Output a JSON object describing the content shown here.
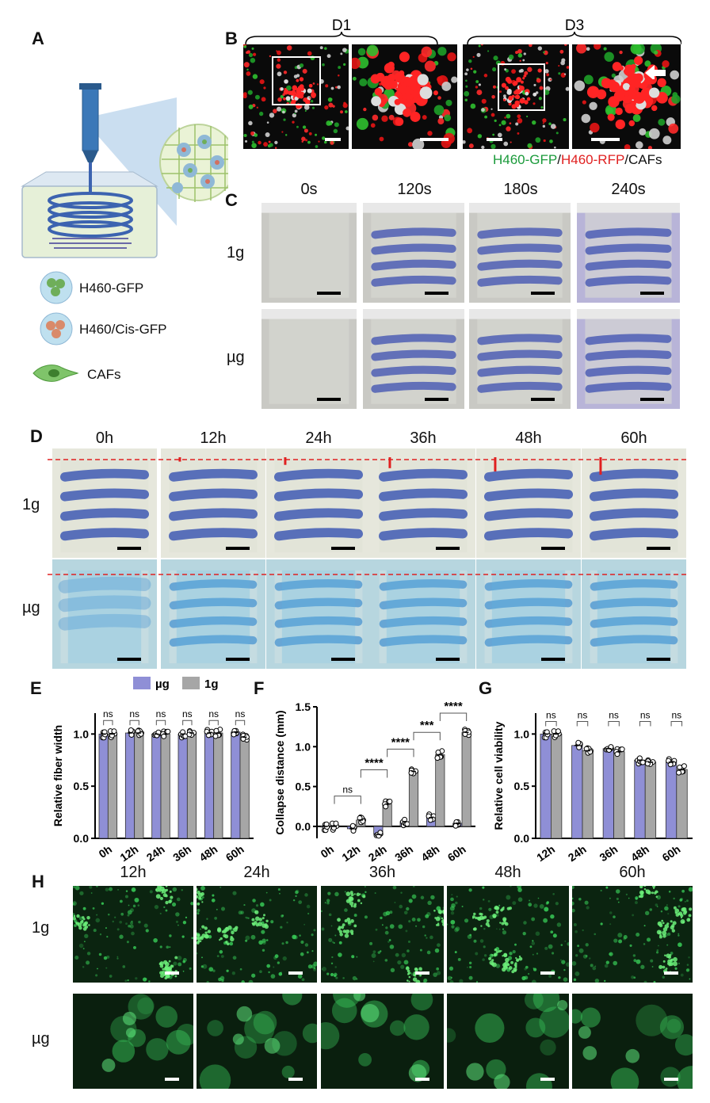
{
  "panels": {
    "A": {
      "label": "A",
      "legend": [
        {
          "text": "H460-GFP",
          "icon": "h460-gfp-sphere-icon"
        },
        {
          "text": "H460/Cis-GFP",
          "icon": "h460-cis-gfp-sphere-icon"
        },
        {
          "text": "CAFs",
          "icon": "caf-cell-icon"
        }
      ]
    },
    "B": {
      "label": "B",
      "groups": [
        "D1",
        "D3"
      ],
      "caption_green": "H460-GFP",
      "caption_sep1": "/",
      "caption_red": "H460-RFP",
      "caption_sep2": "/",
      "caption_gray": "CAFs"
    },
    "C": {
      "label": "C",
      "times": [
        "0s",
        "120s",
        "180s",
        "240s"
      ],
      "rows": [
        "1g",
        "µg"
      ]
    },
    "D": {
      "label": "D",
      "times": [
        "0h",
        "12h",
        "24h",
        "36h",
        "48h",
        "60h"
      ],
      "rows": [
        "1g",
        "µg"
      ]
    },
    "E": {
      "label": "E"
    },
    "F": {
      "label": "F"
    },
    "G": {
      "label": "G"
    },
    "H": {
      "label": "H",
      "times": [
        "12h",
        "24h",
        "36h",
        "48h",
        "60h"
      ],
      "rows": [
        "1g",
        "µg"
      ]
    }
  },
  "colors": {
    "ug": "#8f8fd6",
    "one_g": "#a6a6a6",
    "green_caption": "#1a9a3a",
    "red_caption": "#e02020"
  },
  "chart_data": [
    {
      "id": "E",
      "type": "bar",
      "ylabel": "Relative fiber width",
      "categories": [
        "0h",
        "12h",
        "24h",
        "36h",
        "48h",
        "60h"
      ],
      "legend": [
        "µg",
        "1g"
      ],
      "legend_position": "top",
      "series": [
        {
          "name": "µg",
          "values": [
            1.0,
            1.01,
            1.0,
            1.0,
            1.01,
            1.02
          ]
        },
        {
          "name": "1g",
          "values": [
            1.0,
            1.01,
            1.0,
            1.01,
            1.01,
            0.97
          ]
        }
      ],
      "ylim": [
        0,
        1.2
      ],
      "yticks": [
        "0.0",
        "0.5",
        "1.0"
      ],
      "annotations": [
        "ns",
        "ns",
        "ns",
        "ns",
        "ns",
        "ns"
      ]
    },
    {
      "id": "F",
      "type": "bar",
      "ylabel": "Collapse distance (mm)",
      "categories": [
        "0h",
        "12h",
        "24h",
        "36h",
        "48h",
        "60h"
      ],
      "series": [
        {
          "name": "µg",
          "values": [
            0.0,
            -0.03,
            -0.1,
            0.06,
            0.11,
            0.04
          ]
        },
        {
          "name": "1g",
          "values": [
            0.0,
            0.08,
            0.28,
            0.69,
            0.9,
            1.18
          ]
        }
      ],
      "ylim": [
        -0.15,
        1.5
      ],
      "yticks": [
        "0.0",
        "0.5",
        "1.0",
        "1.5"
      ],
      "annotations": [
        "ns",
        "****",
        "****",
        "***",
        "****"
      ]
    },
    {
      "id": "G",
      "type": "bar",
      "ylabel": "Relative cell viability",
      "categories": [
        "12h",
        "24h",
        "36h",
        "48h",
        "60h"
      ],
      "series": [
        {
          "name": "µg",
          "values": [
            1.0,
            0.89,
            0.86,
            0.75,
            0.73
          ]
        },
        {
          "name": "1g",
          "values": [
            1.0,
            0.84,
            0.83,
            0.73,
            0.66
          ]
        }
      ],
      "ylim": [
        0,
        1.2
      ],
      "yticks": [
        "0.0",
        "0.5",
        "1.0"
      ],
      "annotations": [
        "ns",
        "ns",
        "ns",
        "ns",
        "ns"
      ]
    }
  ]
}
